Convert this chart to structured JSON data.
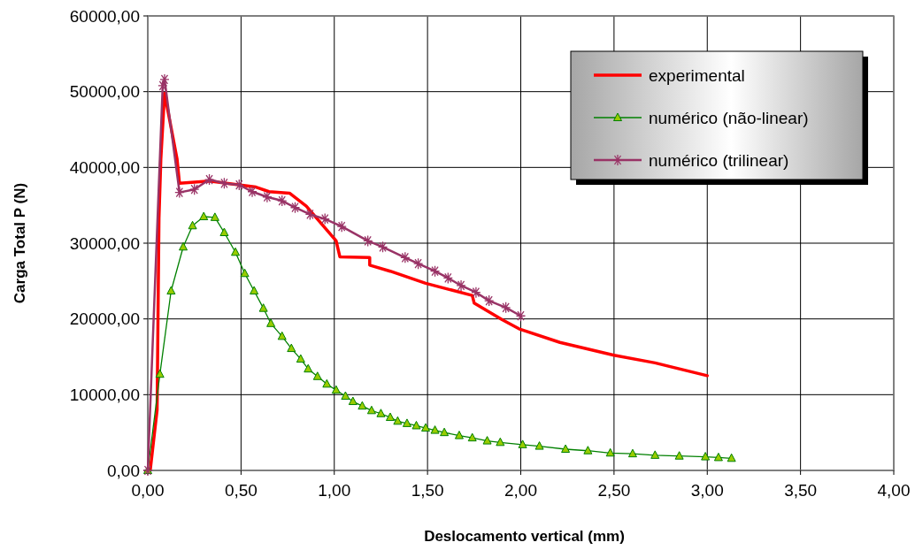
{
  "chart_data": {
    "type": "line",
    "xlabel": "Deslocamento vertical (mm)",
    "ylabel": "Carga Total P (N)",
    "xlim": [
      0,
      4
    ],
    "ylim": [
      0,
      60000
    ],
    "xticks": [
      {
        "value": 0,
        "label": "0,00"
      },
      {
        "value": 0.5,
        "label": "0,50"
      },
      {
        "value": 1,
        "label": "1,00"
      },
      {
        "value": 1.5,
        "label": "1,50"
      },
      {
        "value": 2,
        "label": "2,00"
      },
      {
        "value": 2.5,
        "label": "2,50"
      },
      {
        "value": 3,
        "label": "3,00"
      },
      {
        "value": 3.5,
        "label": "3,50"
      },
      {
        "value": 4,
        "label": "4,00"
      }
    ],
    "yticks": [
      {
        "value": 0,
        "label": "0,00"
      },
      {
        "value": 10000,
        "label": "10000,00"
      },
      {
        "value": 20000,
        "label": "20000,00"
      },
      {
        "value": 30000,
        "label": "30000,00"
      },
      {
        "value": 40000,
        "label": "40000,00"
      },
      {
        "value": 50000,
        "label": "50000,00"
      },
      {
        "value": 60000,
        "label": "60000,00"
      }
    ],
    "grid": true,
    "legend": "top right",
    "line_style": "solid",
    "series": [
      {
        "name": "experimental",
        "color": "#ff0000",
        "marker": "none",
        "x": [
          0,
          0.014,
          0.05,
          0.06,
          0.07,
          0.09,
          0.157,
          0.17,
          0.33,
          0.58,
          0.65,
          0.76,
          0.85,
          1.01,
          1.03,
          1.19,
          1.19,
          1.3,
          1.49,
          1.74,
          1.75,
          1.9,
          1.99,
          2.21,
          2.5,
          2.72,
          3.0
        ],
        "values": [
          0,
          200,
          8000,
          33300,
          41100,
          49800,
          41100,
          37900,
          38200,
          37400,
          36800,
          36600,
          34900,
          30300,
          28200,
          28100,
          27100,
          26300,
          24700,
          23100,
          22100,
          19900,
          18700,
          16900,
          15200,
          14200,
          12500
        ]
      },
      {
        "name": "numérico (não-linear)",
        "color": "#008000",
        "marker": "triangle",
        "x": [
          0,
          0.065,
          0.125,
          0.19,
          0.24,
          0.3,
          0.36,
          0.41,
          0.47,
          0.52,
          0.57,
          0.62,
          0.66,
          0.72,
          0.77,
          0.82,
          0.86,
          0.91,
          0.96,
          1.01,
          1.06,
          1.1,
          1.15,
          1.2,
          1.25,
          1.3,
          1.34,
          1.39,
          1.44,
          1.49,
          1.54,
          1.59,
          1.67,
          1.74,
          1.82,
          1.89,
          2.01,
          2.1,
          2.24,
          2.36,
          2.48,
          2.6,
          2.72,
          2.85,
          2.99,
          3.06,
          3.13
        ],
        "values": [
          0,
          12700,
          23700,
          29500,
          32300,
          33500,
          33400,
          31400,
          28800,
          26000,
          23700,
          21400,
          19400,
          17700,
          16100,
          14700,
          13400,
          12400,
          11400,
          10600,
          9800,
          9100,
          8500,
          7900,
          7500,
          7000,
          6500,
          6200,
          5900,
          5600,
          5300,
          5000,
          4600,
          4300,
          3900,
          3700,
          3400,
          3200,
          2800,
          2600,
          2300,
          2200,
          2000,
          1900,
          1800,
          1700,
          1600
        ]
      },
      {
        "name": "numérico (trilinear)",
        "color": "#993366",
        "marker": "cross",
        "x": [
          0,
          0.08,
          0.09,
          0.17,
          0.25,
          0.33,
          0.41,
          0.49,
          0.56,
          0.64,
          0.72,
          0.79,
          0.87,
          0.95,
          1.04,
          1.18,
          1.26,
          1.38,
          1.45,
          1.54,
          1.61,
          1.68,
          1.76,
          1.83,
          1.92,
          2.0
        ],
        "values": [
          0,
          50800,
          51600,
          36700,
          37100,
          38400,
          37900,
          37700,
          36800,
          36100,
          35600,
          34700,
          33800,
          33200,
          32200,
          30300,
          29500,
          28100,
          27300,
          26300,
          25400,
          24400,
          23500,
          22400,
          21500,
          20400
        ]
      }
    ]
  }
}
